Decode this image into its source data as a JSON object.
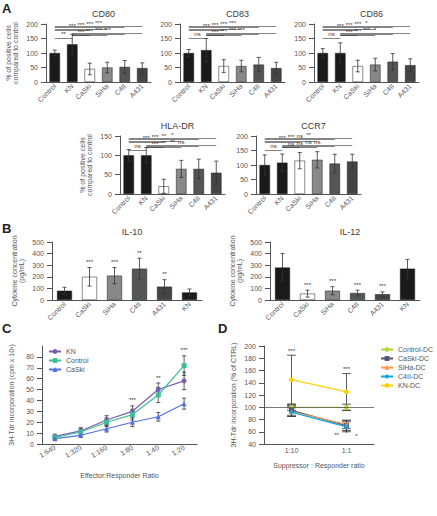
{
  "chart_data": [
    {
      "type": "bar",
      "panel_label": "A",
      "title": "CD80",
      "categories": [
        "Control",
        "KN",
        "CaSki",
        "SiHa",
        "C4II",
        "A431"
      ],
      "values": [
        100,
        130,
        45,
        50,
        52,
        48
      ],
      "errors": [
        10,
        35,
        20,
        18,
        22,
        18
      ],
      "colors": [
        "#1a1a1a",
        "#1a1a1a",
        "#ffffff",
        "#888888",
        "#555555",
        "#444444"
      ],
      "ylim": [
        0,
        200
      ],
      "yticks": [
        0,
        50,
        100,
        150,
        200
      ],
      "ylabel": "% of positive cells\ncompared to control",
      "grid": false,
      "annotations": [
        {
          "text": "***",
          "from": "Control",
          "to": "CaSki"
        },
        {
          "text": "***",
          "from": "Control",
          "to": "SiHa"
        },
        {
          "text": "***",
          "from": "Control",
          "to": "C4II"
        },
        {
          "text": "***",
          "from": "Control",
          "to": "A431"
        },
        {
          "text": "***",
          "from": "KN",
          "to": "CaSki"
        },
        {
          "text": "***",
          "from": "KN",
          "to": "SiHa"
        },
        {
          "text": "***",
          "from": "KN",
          "to": "C4II"
        },
        {
          "text": "***",
          "from": "KN",
          "to": "A431"
        },
        {
          "text": "**",
          "from": "Control",
          "to": "KN"
        }
      ]
    },
    {
      "type": "bar",
      "title": "CD83",
      "categories": [
        "Control",
        "KN",
        "CaSki",
        "SiHa",
        "C4II",
        "A431"
      ],
      "values": [
        100,
        110,
        55,
        55,
        60,
        48
      ],
      "errors": [
        12,
        40,
        22,
        20,
        25,
        20
      ],
      "colors": [
        "#1a1a1a",
        "#1a1a1a",
        "#ffffff",
        "#888888",
        "#555555",
        "#444444"
      ],
      "ylim": [
        0,
        200
      ],
      "yticks": [
        0,
        50,
        100,
        150,
        200
      ],
      "grid": false,
      "annotations": [
        {
          "text": "***",
          "from": "Control",
          "to": "CaSki"
        },
        {
          "text": "***",
          "from": "Control",
          "to": "SiHa"
        },
        {
          "text": "***",
          "from": "Control",
          "to": "C4II"
        },
        {
          "text": "***",
          "from": "Control",
          "to": "A431"
        },
        {
          "text": "***",
          "from": "KN",
          "to": "CaSki"
        },
        {
          "text": "***",
          "from": "KN",
          "to": "SiHa"
        },
        {
          "text": "***",
          "from": "KN",
          "to": "C4II"
        },
        {
          "text": "***",
          "from": "KN",
          "to": "A431"
        },
        {
          "text": "ns",
          "from": "Control",
          "to": "KN"
        }
      ]
    },
    {
      "type": "bar",
      "title": "CD86",
      "categories": [
        "Control",
        "KN",
        "CaSki",
        "SiHa",
        "C4II",
        "A431"
      ],
      "values": [
        100,
        100,
        55,
        60,
        70,
        58
      ],
      "errors": [
        15,
        35,
        20,
        22,
        28,
        22
      ],
      "colors": [
        "#1a1a1a",
        "#1a1a1a",
        "#ffffff",
        "#888888",
        "#555555",
        "#444444"
      ],
      "ylim": [
        0,
        200
      ],
      "yticks": [
        0,
        50,
        100,
        150,
        200
      ],
      "grid": false,
      "annotations": [
        {
          "text": "***",
          "from": "Control",
          "to": "CaSki"
        },
        {
          "text": "***",
          "from": "Control",
          "to": "SiHa"
        },
        {
          "text": "***",
          "from": "Control",
          "to": "C4II"
        },
        {
          "text": "*",
          "from": "Control",
          "to": "A431"
        },
        {
          "text": "***",
          "from": "KN",
          "to": "CaSki"
        },
        {
          "text": "***",
          "from": "KN",
          "to": "SiHa"
        },
        {
          "text": "***",
          "from": "KN",
          "to": "C4II"
        },
        {
          "text": "*",
          "from": "KN",
          "to": "A431"
        },
        {
          "text": "ns",
          "from": "Control",
          "to": "KN"
        }
      ]
    },
    {
      "type": "bar",
      "title": "HLA-DR",
      "categories": [
        "Control",
        "KN",
        "CaSki",
        "SiHa",
        "C4II",
        "A431"
      ],
      "values": [
        100,
        100,
        20,
        65,
        65,
        55
      ],
      "errors": [
        15,
        20,
        18,
        22,
        25,
        30
      ],
      "colors": [
        "#1a1a1a",
        "#1a1a1a",
        "#ffffff",
        "#888888",
        "#555555",
        "#444444"
      ],
      "ylim": [
        0,
        150
      ],
      "yticks": [
        0,
        50,
        100,
        150
      ],
      "ylabel": "% of positive cells\ncompared to control",
      "grid": false,
      "annotations": [
        {
          "text": "***",
          "from": "Control",
          "to": "CaSki"
        },
        {
          "text": "***",
          "from": "Control",
          "to": "SiHa"
        },
        {
          "text": "**",
          "from": "Control",
          "to": "C4II"
        },
        {
          "text": "*",
          "from": "Control",
          "to": "A431"
        },
        {
          "text": "***",
          "from": "KN",
          "to": "CaSki"
        },
        {
          "text": "**",
          "from": "KN",
          "to": "SiHa"
        },
        {
          "text": "**",
          "from": "KN",
          "to": "C4II"
        },
        {
          "text": "ns",
          "from": "KN",
          "to": "A431"
        },
        {
          "text": "ns",
          "from": "Control",
          "to": "KN"
        }
      ]
    },
    {
      "type": "bar",
      "title": "CCR7",
      "categories": [
        "Control",
        "KN",
        "CaSki",
        "SiHa",
        "C4II",
        "A431"
      ],
      "values": [
        100,
        108,
        115,
        118,
        105,
        112
      ],
      "errors": [
        35,
        30,
        28,
        28,
        32,
        25
      ],
      "colors": [
        "#1a1a1a",
        "#1a1a1a",
        "#ffffff",
        "#888888",
        "#555555",
        "#444444"
      ],
      "ylim": [
        0,
        200
      ],
      "yticks": [
        0,
        50,
        100,
        150,
        200
      ],
      "grid": false,
      "annotations": [
        {
          "text": "***",
          "from": "Control",
          "to": "CaSki"
        },
        {
          "text": "***",
          "from": "Control",
          "to": "SiHa"
        },
        {
          "text": "ns",
          "from": "Control",
          "to": "C4II"
        },
        {
          "text": "**",
          "from": "Control",
          "to": "A431"
        },
        {
          "text": "ns",
          "from": "KN",
          "to": "CaSki"
        },
        {
          "text": "ns",
          "from": "KN",
          "to": "SiHa"
        },
        {
          "text": "ns",
          "from": "KN",
          "to": "C4II"
        },
        {
          "text": "ns",
          "from": "KN",
          "to": "A431"
        },
        {
          "text": "ns",
          "from": "Control",
          "to": "KN"
        }
      ]
    },
    {
      "type": "bar",
      "panel_label": "B",
      "title": "IL-10",
      "categories": [
        "Control",
        "CaSki",
        "SiHa",
        "C4II",
        "A431",
        "KN"
      ],
      "values": [
        80,
        200,
        210,
        270,
        115,
        65
      ],
      "errors": [
        30,
        80,
        70,
        90,
        60,
        30
      ],
      "colors": [
        "#1a1a1a",
        "#ffffff",
        "#888888",
        "#555555",
        "#444444",
        "#1a1a1a"
      ],
      "ylim": [
        0,
        500
      ],
      "yticks": [
        0,
        100,
        200,
        300,
        400,
        500
      ],
      "ylabel": "Cytokine concentration\n(pg/mL)",
      "grid": false,
      "annotations": [
        {
          "text": "***",
          "category": "CaSki"
        },
        {
          "text": "***",
          "category": "SiHa"
        },
        {
          "text": "**",
          "category": "C4II"
        },
        {
          "text": "**",
          "category": "A431"
        }
      ]
    },
    {
      "type": "bar",
      "title": "IL-12",
      "categories": [
        "Control",
        "CaSki",
        "SiHa",
        "C4II",
        "A431",
        "KN"
      ],
      "values": [
        280,
        55,
        80,
        60,
        50,
        270
      ],
      "errors": [
        120,
        30,
        35,
        25,
        20,
        80
      ],
      "colors": [
        "#1a1a1a",
        "#ffffff",
        "#888888",
        "#555555",
        "#444444",
        "#1a1a1a"
      ],
      "ylim": [
        0,
        500
      ],
      "yticks": [
        0,
        100,
        200,
        300,
        400,
        500
      ],
      "ylabel": "Cytokine concentration\n(pg/mL)",
      "grid": false,
      "annotations": [
        {
          "text": "***",
          "category": "CaSki"
        },
        {
          "text": "***",
          "category": "SiHa"
        },
        {
          "text": "***",
          "category": "C4II"
        },
        {
          "text": "***",
          "category": "A431"
        }
      ]
    },
    {
      "type": "line",
      "panel_label": "C",
      "categories": [
        "1:640",
        "1:320",
        "1:160",
        "1:80",
        "1:40",
        "1:20"
      ],
      "series": [
        {
          "name": "KN",
          "values": [
            7,
            12,
            22,
            30,
            50,
            58
          ],
          "errors": [
            2,
            3,
            4,
            5,
            6,
            8
          ],
          "marker": "circle"
        },
        {
          "name": "Control",
          "values": [
            6,
            11,
            20,
            27,
            45,
            72
          ],
          "errors": [
            2,
            3,
            4,
            5,
            7,
            9
          ],
          "marker": "square"
        },
        {
          "name": "CaSki",
          "values": [
            5,
            8,
            14,
            20,
            25,
            37
          ],
          "errors": [
            2,
            2,
            3,
            4,
            4,
            5
          ],
          "marker": "triangle"
        }
      ],
      "ylim": [
        0,
        90
      ],
      "yticks": [
        0,
        10,
        20,
        30,
        40,
        50,
        60,
        70,
        80
      ],
      "xlabel": "Effector:Responder Ratio",
      "ylabel": "3H-Tdr incorporation (cpm x 10³)",
      "legend": "upper left",
      "grid": false,
      "annotations": [
        {
          "text": "***",
          "category": "1:80"
        },
        {
          "text": "**",
          "category": "1:40"
        },
        {
          "text": "***",
          "category": "1:20"
        }
      ]
    },
    {
      "type": "line",
      "panel_label": "D",
      "categories": [
        "1:10",
        "1:1"
      ],
      "series": [
        {
          "name": "Control-DC",
          "values": [
            100,
            100
          ],
          "errors": [
            5,
            5
          ],
          "marker": "circle"
        },
        {
          "name": "CaSki-DC",
          "values": [
            95,
            70
          ],
          "errors": [
            8,
            8
          ],
          "marker": "square"
        },
        {
          "name": "SiHa-DC",
          "values": [
            93,
            72
          ],
          "errors": [
            8,
            7
          ],
          "marker": "triangle"
        },
        {
          "name": "C4II-DC",
          "values": [
            92,
            68
          ],
          "errors": [
            7,
            8
          ],
          "marker": "diamond"
        },
        {
          "name": "KN-DC",
          "values": [
            145,
            125
          ],
          "errors": [
            40,
            30
          ],
          "marker": "circle"
        }
      ],
      "reference_lines": [
        100
      ],
      "ylim": [
        40,
        200
      ],
      "yticks": [
        40,
        60,
        80,
        100,
        120,
        140,
        160,
        180,
        200
      ],
      "xlabel": "Suppressor : Responder ratio",
      "ylabel": "3H-Tdr incorporation (% of CTRL)",
      "legend": "upper right",
      "grid": false,
      "annotations": [
        {
          "text": "***",
          "category": "1:10",
          "series": "KN-DC",
          "position": "above"
        },
        {
          "text": "**",
          "category": "1:1",
          "series": "CaSki-DC",
          "position": "below"
        },
        {
          "text": "*",
          "category": "1:1",
          "series": "SiHa-DC",
          "position": "below"
        },
        {
          "text": "*",
          "category": "1:1",
          "series": "C4II-DC",
          "position": "below"
        },
        {
          "text": "***",
          "category": "1:1",
          "series": "KN-DC",
          "position": "above"
        }
      ]
    }
  ]
}
